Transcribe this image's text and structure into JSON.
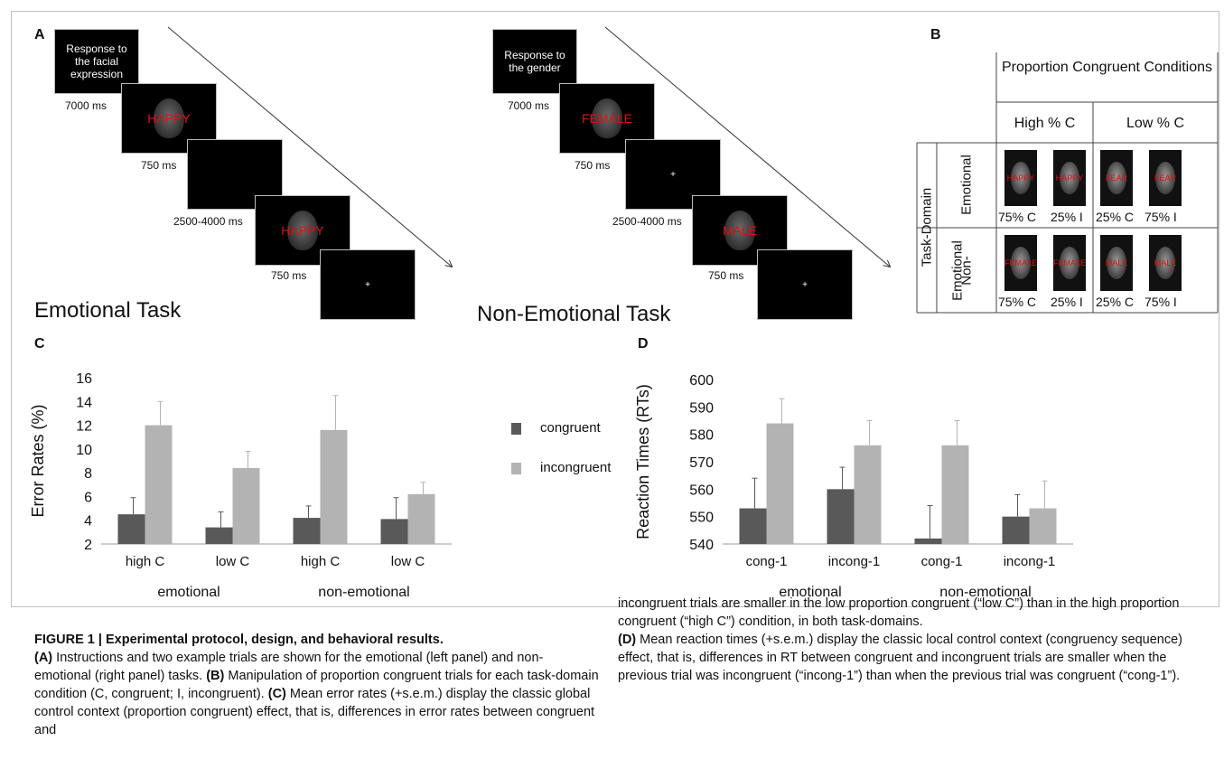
{
  "panel_labels": {
    "a": "A",
    "b": "B",
    "c": "C",
    "d": "D"
  },
  "panel_a": {
    "emotional": {
      "instruction": "Response to the facial expression",
      "durations": [
        "7000 ms",
        "750 ms",
        "2500-4000 ms",
        "750 ms"
      ],
      "words": [
        "HAPPY",
        "HAPPY"
      ],
      "title": "Emotional Task"
    },
    "non_emotional": {
      "instruction": "Response to the gender",
      "durations": [
        "7000 ms",
        "750 ms",
        "2500-4000 ms",
        "750 ms"
      ],
      "words": [
        "FEMALE",
        "MALE"
      ],
      "title": "Non-Emotional Task"
    },
    "fixation": "+"
  },
  "panel_b": {
    "header": "Proportion Congruent Conditions",
    "col_high": "High % C",
    "col_low": "Low % C",
    "row_group": "Task-Domain",
    "row_emotional": "Emotional",
    "row_non_emotional_1": "Non-",
    "row_non_emotional_2": "Emotional",
    "emotional_words": [
      "HAPPY",
      "HAPPY",
      "FEAR",
      "FEAR"
    ],
    "nonemotional_words": [
      "FEMALE",
      "FEMALE",
      "MALE",
      "MALE"
    ],
    "pcts": [
      "75% C",
      "25% I",
      "25% C",
      "75% I"
    ]
  },
  "legend": {
    "congruent": "congruent",
    "incongruent": "incongruent"
  },
  "colors": {
    "congruent": "#595959",
    "incongruent": "#b3b3b3",
    "word": "#e01010"
  },
  "chart_data": [
    {
      "type": "bar",
      "ylabel": "Error Rates (%)",
      "ylim": [
        2,
        16
      ],
      "yticks": [
        2,
        4,
        6,
        8,
        10,
        12,
        14,
        16
      ],
      "categories": [
        "high C",
        "low C",
        "high C",
        "low C"
      ],
      "groups": [
        "emotional",
        "non-emotional"
      ],
      "series": [
        {
          "name": "congruent",
          "values": [
            4.5,
            3.4,
            4.2,
            4.1
          ],
          "errors": [
            1.4,
            1.3,
            1.0,
            1.8
          ]
        },
        {
          "name": "incongruent",
          "values": [
            12.0,
            8.4,
            11.6,
            6.2
          ],
          "errors": [
            2.0,
            1.4,
            2.9,
            1.0
          ]
        }
      ]
    },
    {
      "type": "bar",
      "ylabel": "Reaction Times (RTs)",
      "ylim": [
        540,
        600
      ],
      "yticks": [
        540,
        550,
        560,
        570,
        580,
        590,
        600
      ],
      "categories": [
        "cong-1",
        "incong-1",
        "cong-1",
        "incong-1"
      ],
      "groups": [
        "emotional",
        "non-emotional"
      ],
      "series": [
        {
          "name": "congruent",
          "values": [
            553,
            560,
            542,
            550
          ],
          "errors": [
            11,
            8,
            12,
            8
          ]
        },
        {
          "name": "incongruent",
          "values": [
            584,
            576,
            576,
            553
          ],
          "errors": [
            9,
            9,
            9,
            10
          ]
        }
      ]
    }
  ],
  "caption": {
    "title": "FIGURE 1 | Experimental protocol, design, and behavioral results.",
    "a_tag": "(A)",
    "a_text": " Instructions and two example trials are shown for the emotional (left panel) and non-emotional (right panel) tasks. ",
    "b_tag": "(B)",
    "b_text": " Manipulation of proportion congruent trials for each task-domain condition (C, congruent; I, incongruent). ",
    "c_tag": "(C)",
    "c_text": " Mean error rates (+s.e.m.) display the classic global control context (proportion congruent) effect, that is, differences in error rates between congruent and incongruent trials are smaller in the low proportion congruent (“low C”) than in the high proportion congruent (“high C”) condition, in both task-domains.",
    "d_tag": "(D)",
    "d_text": " Mean reaction times (+s.e.m.) display the classic local control context (congruency sequence) effect, that is, differences in RT between congruent and incongruent trials are smaller when the previous trial was incongruent (“incong-1”) than when the previous trial was congruent (“cong-1”)."
  }
}
